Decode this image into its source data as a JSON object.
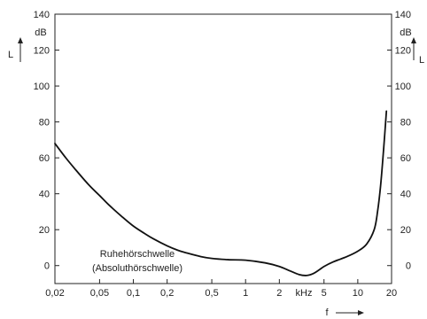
{
  "chart_data": {
    "type": "line",
    "title": "",
    "xlabel": "f",
    "ylabel": "L",
    "ylabel_right": "L",
    "xscale": "log",
    "xlim": [
      0.02,
      20
    ],
    "ylim": [
      -10,
      140
    ],
    "x_ticks": [
      {
        "value": 0.02,
        "label": "0,02"
      },
      {
        "value": 0.05,
        "label": "0,05"
      },
      {
        "value": 0.1,
        "label": "0,1"
      },
      {
        "value": 0.2,
        "label": "0,2"
      },
      {
        "value": 0.5,
        "label": "0,5"
      },
      {
        "value": 1,
        "label": "1"
      },
      {
        "value": 2,
        "label": "2"
      },
      {
        "value": 5,
        "label": "5"
      },
      {
        "value": 10,
        "label": "10"
      },
      {
        "value": 20,
        "label": "20"
      }
    ],
    "x_unit_label": "kHz",
    "y_ticks": [
      0,
      20,
      40,
      60,
      80,
      100,
      120,
      140
    ],
    "y_unit_label": "dB",
    "grid": false,
    "legend": "none",
    "annotation_lines": [
      "Ruhehörschwelle",
      "(Absoluthörschwelle)"
    ],
    "series": [
      {
        "x": [
          0.02,
          0.025,
          0.03,
          0.04,
          0.05,
          0.06,
          0.08,
          0.1,
          0.125,
          0.15,
          0.2,
          0.25,
          0.3,
          0.4,
          0.5,
          0.7,
          1.0,
          1.5,
          2.0,
          2.5,
          3.0,
          3.5,
          4.0,
          4.5,
          5.0,
          6.0,
          8.0,
          10.0,
          12.0,
          14.0,
          15.0,
          16.0,
          17.0,
          18.0
        ],
        "y": [
          68,
          60,
          54,
          45,
          39,
          34,
          27,
          22,
          18,
          15,
          11,
          8.5,
          7,
          5,
          4,
          3.3,
          3,
          1.5,
          -0.5,
          -3,
          -5,
          -5.5,
          -4.5,
          -2.5,
          -0.5,
          2,
          5,
          8,
          12,
          20,
          30,
          45,
          65,
          86
        ]
      }
    ]
  }
}
